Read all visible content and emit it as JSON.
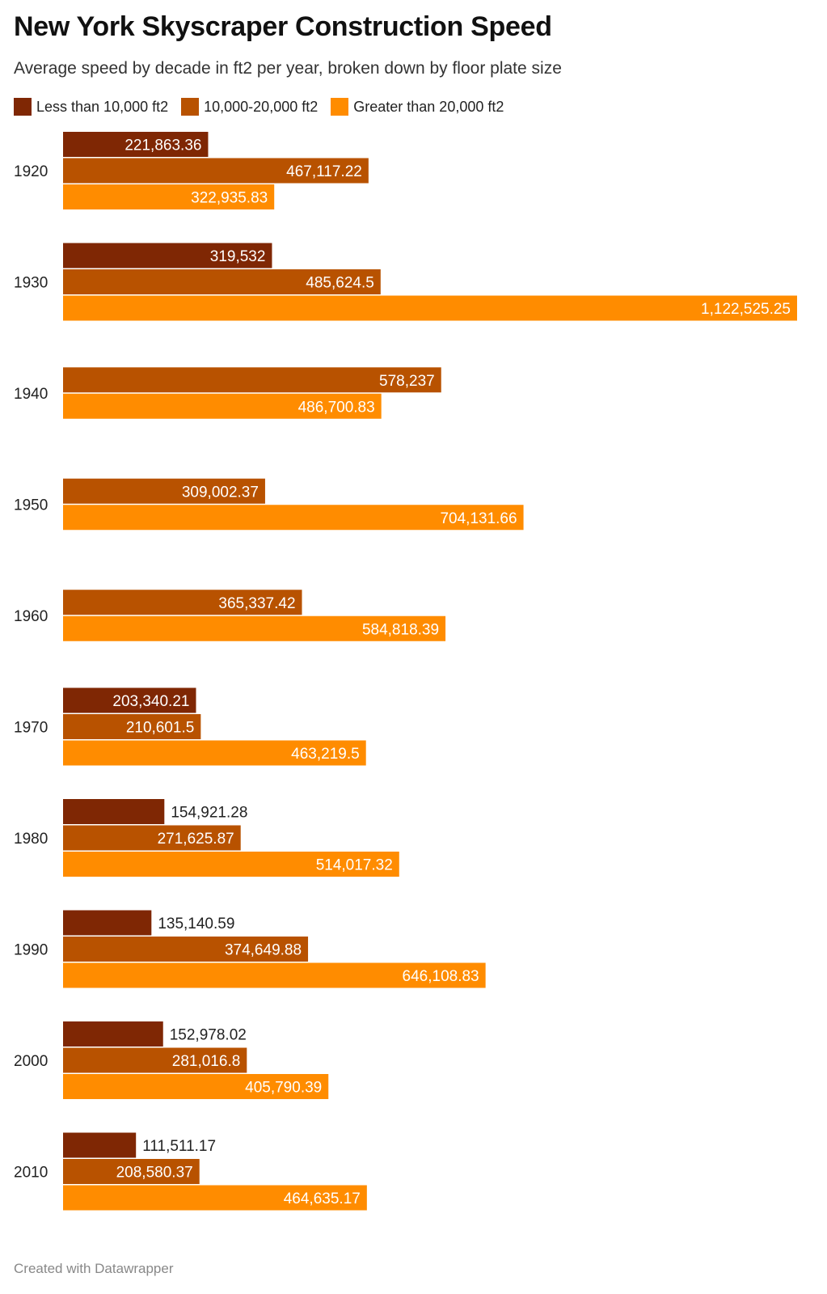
{
  "title": "New York Skyscraper Construction Speed",
  "subtitle": "Average speed by decade in ft2 per year, broken down by floor plate size",
  "footer": "Created with Datawrapper",
  "chart_data": {
    "type": "bar",
    "orientation": "horizontal",
    "title": "New York Skyscraper Construction Speed",
    "subtitle": "Average speed by decade in ft2 per year, broken down by floor plate size",
    "categories": [
      "1920",
      "1930",
      "1940",
      "1950",
      "1960",
      "1970",
      "1980",
      "1990",
      "2000",
      "2010"
    ],
    "series": [
      {
        "name": "Less than 10,000 ft2",
        "color": "#7f2704",
        "values": [
          221863.36,
          319532,
          null,
          null,
          null,
          203340.21,
          154921.28,
          135140.59,
          152978.02,
          111511.17
        ],
        "labels": [
          "221,863.36",
          "319,532",
          null,
          null,
          null,
          "203,340.21",
          "154,921.28",
          "135,140.59",
          "152,978.02",
          "111,511.17"
        ]
      },
      {
        "name": "10,000-20,000 ft2",
        "color": "#b85200",
        "values": [
          467117.22,
          485624.5,
          578237,
          309002.37,
          365337.42,
          210601.5,
          271625.87,
          374649.88,
          281016.8,
          208580.37
        ],
        "labels": [
          "467,117.22",
          "485,624.5",
          "578,237",
          "309,002.37",
          "365,337.42",
          "210,601.5",
          "271,625.87",
          "374,649.88",
          "281,016.8",
          "208,580.37"
        ]
      },
      {
        "name": "Greater than 20,000 ft2",
        "color": "#ff8c00",
        "values": [
          322935.83,
          1122525.25,
          486700.83,
          704131.66,
          584818.39,
          463219.5,
          514017.32,
          646108.83,
          405790.39,
          464635.17
        ],
        "labels": [
          "322,935.83",
          "1,122,525.25",
          "486,700.83",
          "704,131.66",
          "584,818.39",
          "463,219.5",
          "514,017.32",
          "646,108.83",
          "405,790.39",
          "464,635.17"
        ]
      }
    ],
    "xlim": [
      0,
      1122525.25
    ],
    "grid": false,
    "legend_position": "top-left"
  }
}
